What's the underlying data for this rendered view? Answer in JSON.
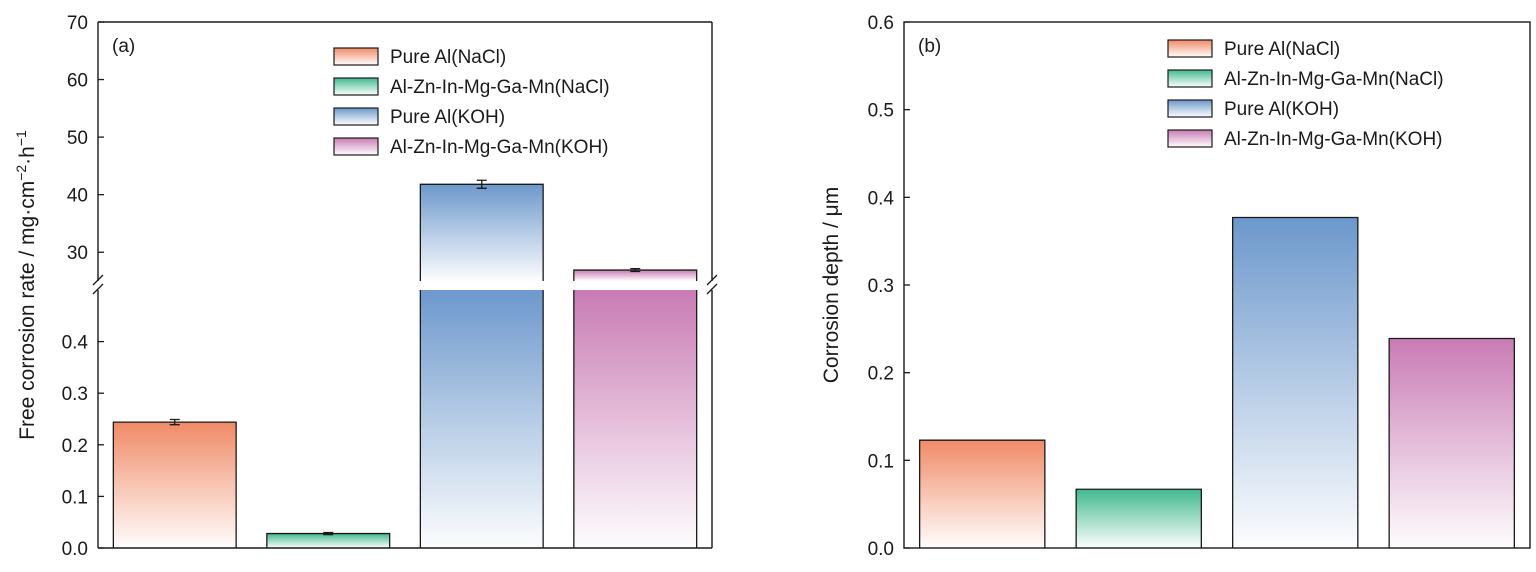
{
  "chart_data": [
    {
      "type": "bar",
      "panel_label": "(a)",
      "ylabel": "Free corrosion rate / mg·cm⁻²·h⁻¹",
      "broken_axis": true,
      "lower_ylim": [
        0,
        0.5
      ],
      "lower_yticks": [
        0.0,
        0.1,
        0.2,
        0.3,
        0.4
      ],
      "lower_ytick_labels": [
        "0.0",
        "0.1",
        "0.2",
        "0.3",
        "0.4"
      ],
      "upper_ylim": [
        25,
        70
      ],
      "upper_yticks": [
        30,
        40,
        50,
        60,
        70
      ],
      "upper_ytick_labels": [
        "30",
        "40",
        "50",
        "60",
        "70"
      ],
      "legend_position": "top-right",
      "series": [
        {
          "name": "Pure Al(NaCl)",
          "value": 0.244,
          "error": 0.005,
          "color": "#f08a66"
        },
        {
          "name": "Al-Zn-In-Mg-Ga-Mn(NaCl)",
          "value": 0.028,
          "error": 0.002,
          "color": "#41b98e"
        },
        {
          "name": "Pure Al(KOH)",
          "value": 41.8,
          "error": 0.7,
          "color": "#6c98cc"
        },
        {
          "name": "Al-Zn-In-Mg-Ga-Mn(KOH)",
          "value": 26.9,
          "error": 0.25,
          "color": "#c97bb4"
        }
      ]
    },
    {
      "type": "bar",
      "panel_label": "(b)",
      "ylabel": "Corrosion depth / μm",
      "ylim": [
        0,
        0.6
      ],
      "yticks": [
        0.0,
        0.1,
        0.2,
        0.3,
        0.4,
        0.5,
        0.6
      ],
      "ytick_labels": [
        "0.0",
        "0.1",
        "0.2",
        "0.3",
        "0.4",
        "0.5",
        "0.6"
      ],
      "legend_position": "top-right",
      "series": [
        {
          "name": "Pure Al(NaCl)",
          "value": 0.123,
          "color": "#f08a66"
        },
        {
          "name": "Al-Zn-In-Mg-Ga-Mn(NaCl)",
          "value": 0.067,
          "color": "#41b98e"
        },
        {
          "name": "Pure Al(KOH)",
          "value": 0.377,
          "color": "#6c98cc"
        },
        {
          "name": "Al-Zn-In-Mg-Ga-Mn(KOH)",
          "value": 0.239,
          "color": "#c97bb4"
        }
      ]
    }
  ]
}
